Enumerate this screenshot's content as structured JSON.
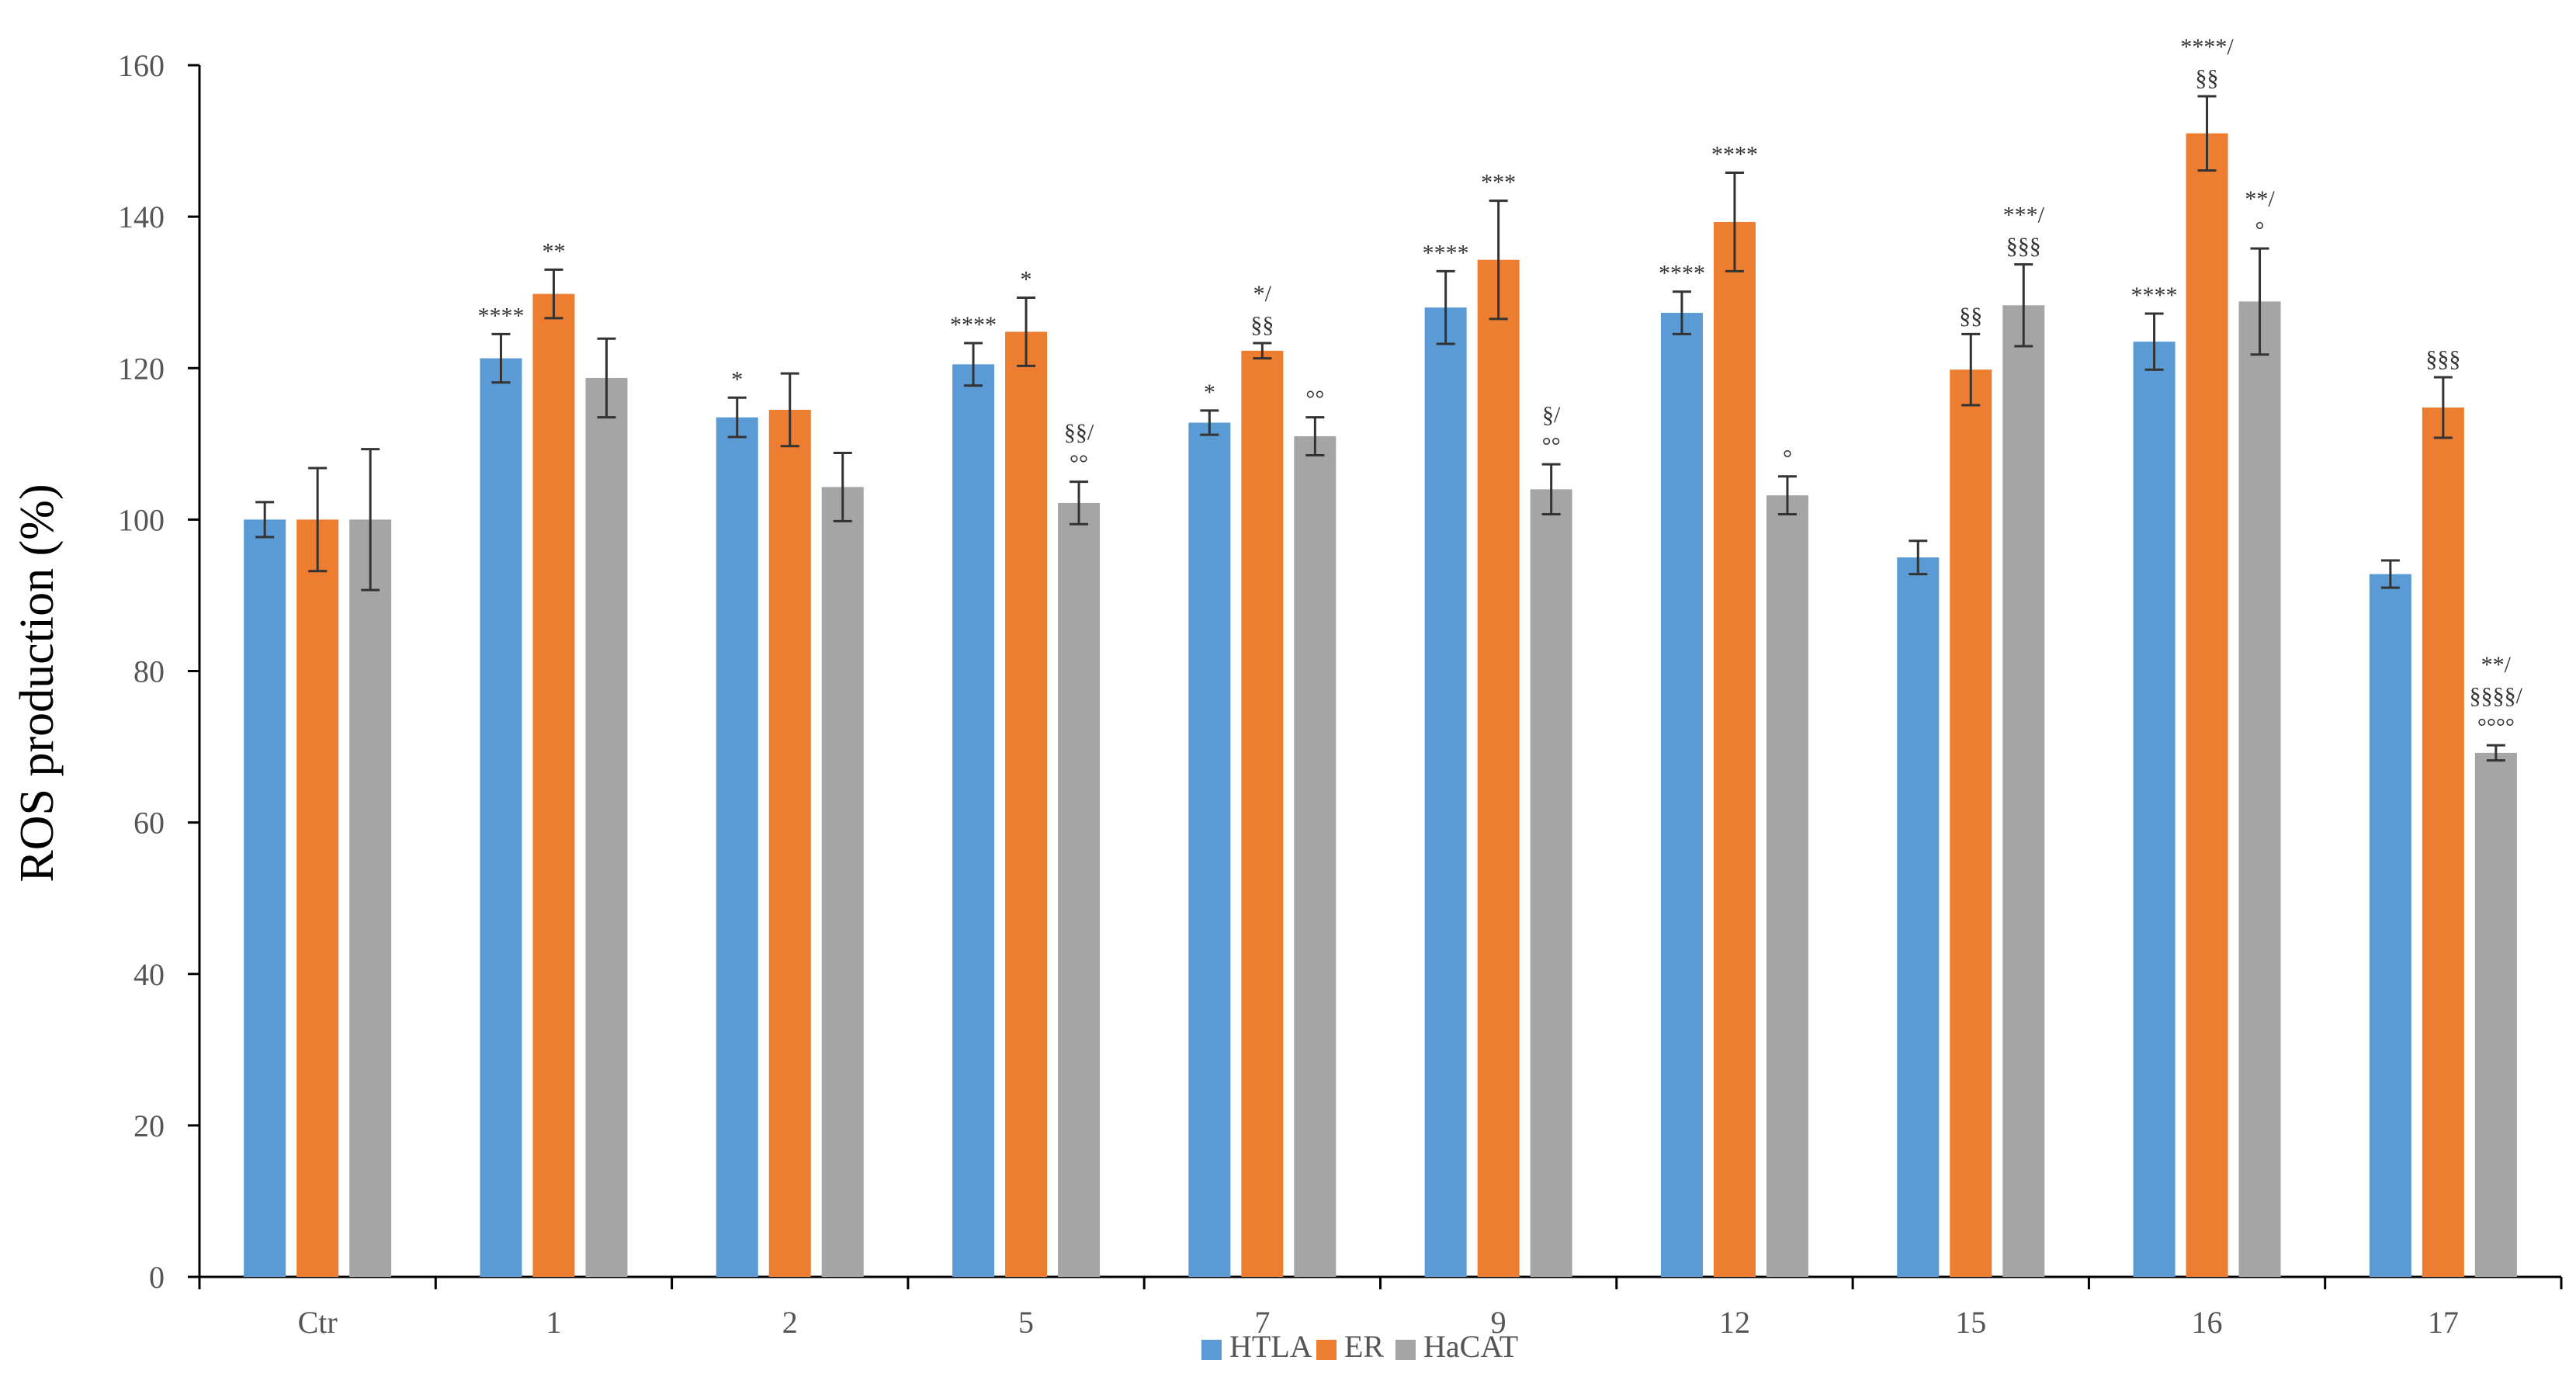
{
  "chart_data": {
    "type": "bar",
    "title": "",
    "xlabel": "",
    "ylabel": "ROS production (%)",
    "ylim": [
      0,
      160
    ],
    "yticks": [
      "0",
      "20",
      "40",
      "60",
      "80",
      "100",
      "120",
      "140",
      "160"
    ],
    "grid": false,
    "legend_position": "bottom-center",
    "categories": [
      "Ctr",
      "1",
      "2",
      "5",
      "7",
      "9",
      "12",
      "15",
      "16",
      "17"
    ],
    "series": [
      {
        "name": "HTLA",
        "color": "#5b9bd5",
        "values": [
          100,
          121.3,
          113.5,
          120.5,
          112.8,
          128,
          127.3,
          95,
          123.5,
          92.8
        ],
        "errors": [
          2.3,
          3.2,
          2.6,
          2.8,
          1.6,
          4.8,
          2.8,
          2.2,
          3.7,
          1.8
        ],
        "annotations": [
          [],
          [
            "****"
          ],
          [
            "*"
          ],
          [
            "****"
          ],
          [
            "*"
          ],
          [
            "****"
          ],
          [
            "****"
          ],
          [],
          [
            "****"
          ],
          []
        ]
      },
      {
        "name": "ER",
        "color": "#ed7d31",
        "values": [
          100,
          129.8,
          114.5,
          124.8,
          122.3,
          134.3,
          139.3,
          119.8,
          151,
          114.8
        ],
        "errors": [
          6.8,
          3.2,
          4.8,
          4.5,
          1,
          7.8,
          6.5,
          4.7,
          4.9,
          4
        ],
        "annotations": [
          [],
          [
            "**"
          ],
          [],
          [
            "*"
          ],
          [
            "*/",
            "§§"
          ],
          [
            "***"
          ],
          [
            "****"
          ],
          [
            "§§"
          ],
          [
            "****/",
            "§§"
          ],
          [
            "§§§"
          ]
        ]
      },
      {
        "name": "HaCAT",
        "color": "#a5a5a5",
        "values": [
          100,
          118.7,
          104.3,
          102.2,
          111,
          104,
          103.2,
          128.3,
          128.8,
          69.2
        ],
        "errors": [
          9.3,
          5.2,
          4.5,
          2.8,
          2.5,
          3.3,
          2.5,
          5.4,
          7,
          1
        ],
        "annotations": [
          [],
          [],
          [],
          [
            "§§/",
            "°°"
          ],
          [
            "°°"
          ],
          [
            "§/",
            "°°"
          ],
          [
            "°"
          ],
          [
            "***/",
            "§§§"
          ],
          [
            "**/",
            "°"
          ],
          [
            "**/",
            "§§§§/",
            "°°°°"
          ]
        ]
      }
    ]
  }
}
